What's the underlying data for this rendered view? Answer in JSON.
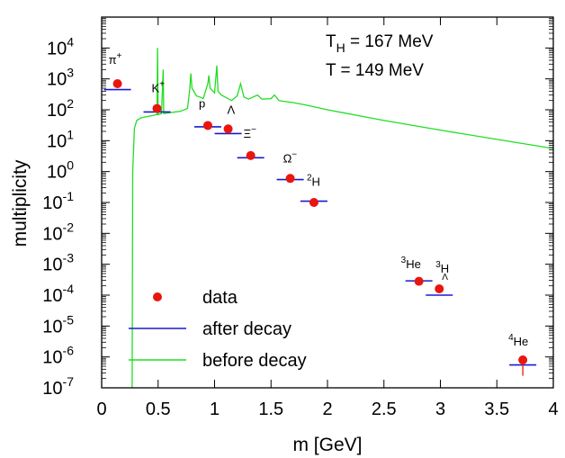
{
  "chart_data": {
    "type": "scatter",
    "xlabel": "m [GeV]",
    "ylabel": "multiplicity",
    "xlim": [
      0,
      4
    ],
    "ylim": [
      1e-07,
      100000
    ],
    "yscale": "log",
    "x_ticks": [
      "0",
      "0.5",
      "1",
      "1.5",
      "2",
      "2.5",
      "3",
      "3.5",
      "4"
    ],
    "y_ticks": [
      "10-7",
      "10-6",
      "10-5",
      "10-4",
      "10-3",
      "10-2",
      "10-1",
      "100",
      "101",
      "102",
      "103",
      "104"
    ],
    "annotations": [
      {
        "text": "T_H = 167 MeV",
        "main": "T",
        "sub": "H",
        "rest": " = 167 MeV"
      },
      {
        "text": "T  = 149 MeV",
        "main": "T",
        "sub": "",
        "rest": "  = 149 MeV"
      }
    ],
    "legend": {
      "position": "bottom-left",
      "entries": [
        {
          "label": "data",
          "color": "#e8160e",
          "marker": "circle"
        },
        {
          "label": "after decay",
          "color": "#1a1acc",
          "marker": "line"
        },
        {
          "label": "before decay",
          "color": "#22dd22",
          "marker": "line"
        }
      ]
    },
    "particles": [
      {
        "label": "π",
        "sup": "+",
        "pre": "",
        "sub": "",
        "x": 0.14,
        "data": 700,
        "after": 450
      },
      {
        "label": "K",
        "sup": "+",
        "pre": "",
        "sub": "",
        "x": 0.49,
        "data": 110,
        "after": 85
      },
      {
        "label": "p",
        "sup": "",
        "pre": "",
        "sub": "",
        "x": 0.94,
        "data": 31,
        "after": 28
      },
      {
        "label": "Λ",
        "sup": "",
        "pre": "",
        "sub": "",
        "x": 1.12,
        "data": 24,
        "after": 17
      },
      {
        "label": "Ξ",
        "sup": "−",
        "pre": "",
        "sub": "",
        "x": 1.32,
        "data": 3.3,
        "after": 2.8
      },
      {
        "label": "Ω",
        "sup": "−",
        "pre": "",
        "sub": "",
        "x": 1.67,
        "data": 0.6,
        "after": 0.55
      },
      {
        "label": "H",
        "sup": "",
        "pre": "2",
        "sub": "",
        "x": 1.88,
        "data": 0.1,
        "after": 0.11
      },
      {
        "label": "He",
        "sup": "",
        "pre": "3",
        "sub": "",
        "x": 2.81,
        "data": 0.00028,
        "after": 0.00029
      },
      {
        "label": "H",
        "sup": "",
        "pre": "3",
        "sub": "Λ",
        "x": 2.99,
        "data": 0.00016,
        "after": 0.0001
      },
      {
        "label": "He",
        "sup": "",
        "pre": "4",
        "sub": "",
        "x": 3.73,
        "data": 8e-07,
        "after": 5.5e-07
      }
    ],
    "before_decay_curve": [
      [
        0.27,
        1e-07
      ],
      [
        0.275,
        1
      ],
      [
        0.29,
        25
      ],
      [
        0.31,
        45
      ],
      [
        0.35,
        55
      ],
      [
        0.45,
        65
      ],
      [
        0.49,
        70
      ],
      [
        0.495,
        10000
      ],
      [
        0.5,
        70
      ],
      [
        0.53,
        75
      ],
      [
        0.545,
        2000
      ],
      [
        0.55,
        75
      ],
      [
        0.6,
        80
      ],
      [
        0.7,
        90
      ],
      [
        0.76,
        110
      ],
      [
        0.78,
        450
      ],
      [
        0.79,
        1500
      ],
      [
        0.8,
        500
      ],
      [
        0.84,
        280
      ],
      [
        0.88,
        250
      ],
      [
        0.9,
        230
      ],
      [
        0.94,
        700
      ],
      [
        0.95,
        1300
      ],
      [
        0.96,
        500
      ],
      [
        1.0,
        350
      ],
      [
        1.02,
        2700
      ],
      [
        1.03,
        400
      ],
      [
        1.06,
        300
      ],
      [
        1.1,
        250
      ],
      [
        1.15,
        200
      ],
      [
        1.2,
        280
      ],
      [
        1.23,
        700
      ],
      [
        1.26,
        260
      ],
      [
        1.3,
        220
      ],
      [
        1.38,
        300
      ],
      [
        1.42,
        220
      ],
      [
        1.5,
        230
      ],
      [
        1.53,
        300
      ],
      [
        1.57,
        200
      ],
      [
        1.6,
        190
      ],
      [
        1.7,
        170
      ],
      [
        1.8,
        145
      ],
      [
        2.0,
        100
      ],
      [
        2.5,
        45
      ],
      [
        3.0,
        22
      ],
      [
        3.5,
        11
      ],
      [
        4.0,
        5.6
      ]
    ]
  }
}
